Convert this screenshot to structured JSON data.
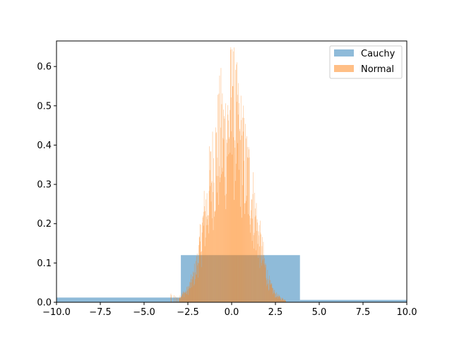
{
  "chart_data": {
    "type": "bar",
    "xlim": [
      -10,
      10
    ],
    "ylim": [
      0,
      0.665
    ],
    "grid": false,
    "legend_position": "top-right",
    "x_ticks": [
      -10.0,
      -7.5,
      -5.0,
      -2.5,
      0.0,
      2.5,
      5.0,
      7.5,
      10.0
    ],
    "x_tick_labels": [
      "−10.0",
      "−7.5",
      "−5.0",
      "−2.5",
      "0.0",
      "2.5",
      "5.0",
      "7.5",
      "10.0"
    ],
    "y_ticks": [
      0.0,
      0.1,
      0.2,
      0.3,
      0.4,
      0.5,
      0.6
    ],
    "y_tick_labels": [
      "0.0",
      "0.1",
      "0.2",
      "0.3",
      "0.4",
      "0.5",
      "0.6"
    ],
    "series": [
      {
        "name": "Cauchy",
        "color": "#1f77b4",
        "opacity": 0.5,
        "bins": [
          {
            "x0": -10.5,
            "x1": -2.9,
            "y": 0.012
          },
          {
            "x0": -2.9,
            "x1": 3.9,
            "y": 0.12
          },
          {
            "x0": 3.9,
            "x1": 10.5,
            "y": 0.006
          }
        ]
      },
      {
        "name": "Normal",
        "color": "#ff7f0e",
        "opacity": 0.5,
        "envelope_x": [
          -3.6,
          -3.1,
          -2.8,
          -2.5,
          -2.2,
          -2.0,
          -1.8,
          -1.6,
          -1.4,
          -1.2,
          -1.0,
          -0.8,
          -0.6,
          -0.4,
          -0.2,
          0.0,
          0.2,
          0.4,
          0.6,
          0.8,
          1.0,
          1.2,
          1.4,
          1.6,
          1.8,
          2.0,
          2.2,
          2.5,
          2.8,
          3.1
        ],
        "envelope_y": [
          0.02,
          0.01,
          0.02,
          0.03,
          0.06,
          0.09,
          0.14,
          0.2,
          0.24,
          0.3,
          0.34,
          0.38,
          0.42,
          0.4,
          0.43,
          0.48,
          0.44,
          0.41,
          0.37,
          0.33,
          0.3,
          0.25,
          0.2,
          0.15,
          0.11,
          0.07,
          0.04,
          0.02,
          0.01,
          0.005
        ],
        "peak_x": 0.05,
        "peak_y": 0.55
      }
    ]
  }
}
